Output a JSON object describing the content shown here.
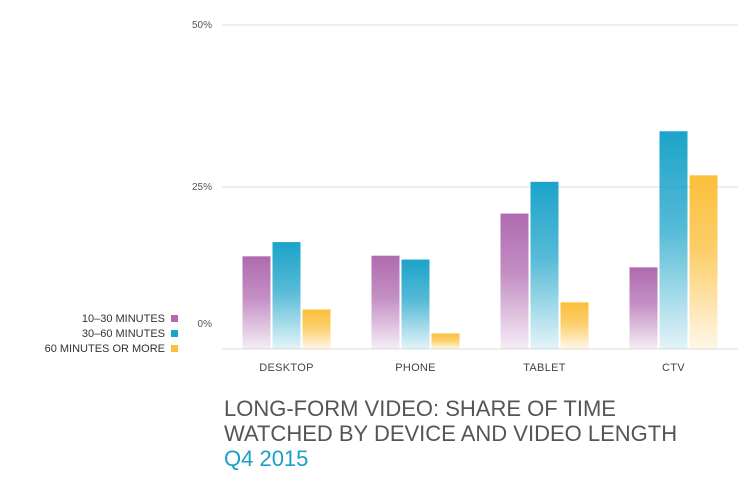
{
  "chart_data": {
    "type": "bar",
    "title_lines": [
      "LONG-FORM VIDEO: SHARE OF TIME",
      "WATCHED BY DEVICE AND VIDEO LENGTH"
    ],
    "subtitle": "Q4 2015",
    "categories": [
      "DESKTOP",
      "PHONE",
      "TABLET",
      "CTV"
    ],
    "ylim": [
      0,
      50
    ],
    "ytick_labels": [
      "0%",
      "25%",
      "50%"
    ],
    "yticks": [
      0,
      25,
      50
    ],
    "grid": true,
    "legend_position": "left",
    "series": [
      {
        "name": "10–30 MINUTES",
        "values": [
          14.3,
          14.4,
          20.9,
          12.6
        ],
        "color": "#b06ab0"
      },
      {
        "name": "30–60 MINUTES",
        "values": [
          16.5,
          13.8,
          25.8,
          33.6
        ],
        "color": "#1ca3c9"
      },
      {
        "name": "60 MINUTES OR MORE",
        "values": [
          6.1,
          2.4,
          7.2,
          26.8
        ],
        "color": "#fbbf3b"
      }
    ]
  }
}
